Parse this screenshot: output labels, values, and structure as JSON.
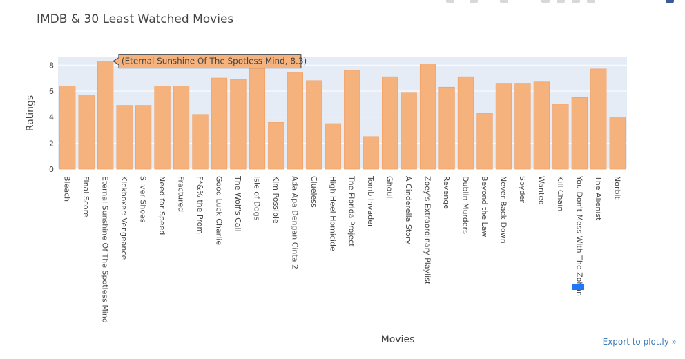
{
  "chart_data": {
    "type": "bar",
    "title": "IMDB & 30 Least Watched Movies",
    "xlabel": "Movies",
    "ylabel": "Ratings",
    "ylim": [
      0,
      8.6
    ],
    "yticks": [
      0,
      2,
      4,
      6,
      8
    ],
    "grid": true,
    "bar_color": "#f6b27d",
    "plot_bg": "#e5ecf6",
    "categories": [
      "Bleach",
      "Final Score",
      "Eternal Sunshine Of The Spotless Mind",
      "Kickboxer: Vengeance",
      "Silver Shoes",
      "Need for Speed",
      "Fractured",
      "F*&% the Prom",
      "Good Luck Charlie",
      "The Wolf's Call",
      "Isle of Dogs",
      "Kim Possible",
      "Ada Apa Dengan Cinta 2",
      "Clueless",
      "High Heel Homicide",
      "The Florida Project",
      "Tomb Invader",
      "Ghoul",
      "A Cinderella Story",
      "Zoey's Extraordinary Playlist",
      "Revenge",
      "Dublin Murders",
      "Beyond the Law",
      "Never Back Down",
      "Spyder",
      "Wanted",
      "Kill Chain",
      "You Don't Mess With The Zohan",
      "The Alienist",
      "Norbit"
    ],
    "values": [
      6.4,
      5.7,
      8.3,
      4.9,
      4.9,
      6.4,
      6.4,
      4.2,
      7.0,
      6.9,
      7.8,
      3.6,
      7.4,
      6.8,
      3.5,
      7.6,
      2.5,
      7.1,
      5.9,
      8.1,
      6.3,
      7.1,
      4.3,
      6.6,
      6.6,
      6.7,
      5.0,
      5.5,
      7.7,
      4.0
    ],
    "hover": {
      "label": "(Eternal Sunshine Of The Spotless Mind, 8.3)",
      "index": 2
    }
  },
  "export": {
    "label": "Export to plot.ly »",
    "color": "#3d7ab8"
  }
}
